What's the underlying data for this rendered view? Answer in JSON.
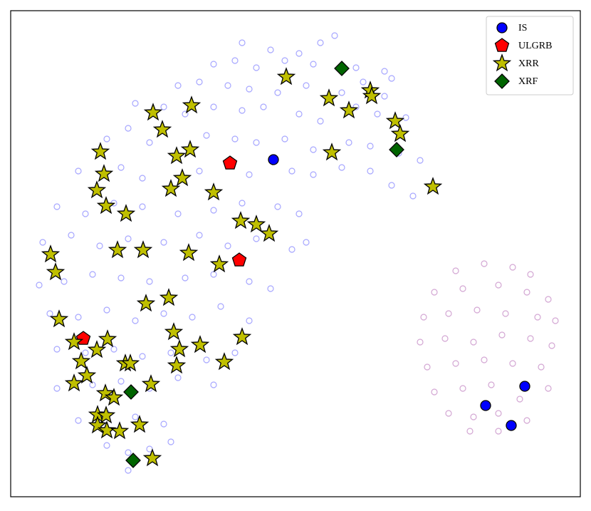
{
  "chart_data": {
    "type": "scatter",
    "xlim": [
      15,
      815
    ],
    "ylim": [
      697,
      15
    ],
    "legend": "upper right",
    "series": [
      {
        "color": "#0000ff",
        "marker": "circle",
        "filled": false,
        "x": [
          450,
          470,
          420,
          380,
          340,
          300,
          330,
          360,
          400,
          440,
          500,
          540,
          550,
          250,
          280,
          320,
          350,
          390,
          430,
          480,
          510,
          540,
          190,
          230,
          260,
          300,
          340,
          370,
          420,
          450,
          500,
          530,
          570,
          150,
          180,
          210,
          290,
          330,
          360,
          400,
          440,
          490,
          520,
          560,
          590,
          110,
          170,
          200,
          280,
          350,
          410,
          440,
          480,
          520,
          550,
          580,
          80,
          120,
          160,
          200,
          250,
          300,
          340,
          390,
          420,
          60,
          100,
          140,
          180,
          230,
          280,
          320,
          360,
          410,
          430,
          55,
          90,
          130,
          170,
          210,
          260,
          300,
          350,
          380,
          70,
          110,
          150,
          190,
          230,
          270,
          310,
          350,
          80,
          120,
          160,
          200,
          240,
          290,
          330,
          80,
          130,
          170,
          210,
          250,
          300,
          110,
          150,
          190,
          230,
          150,
          180,
          210,
          240,
          180
        ],
        "y": [
          60,
          50,
          75,
          70,
          60,
          90,
          85,
          95,
          85,
          90,
          95,
          100,
          110,
          120,
          115,
          120,
          125,
          130,
          120,
          130,
          115,
          135,
          145,
          150,
          160,
          150,
          155,
          150,
          160,
          170,
          150,
          160,
          165,
          195,
          180,
          200,
          190,
          195,
          200,
          195,
          210,
          200,
          205,
          215,
          225,
          240,
          235,
          250,
          240,
          245,
          240,
          245,
          235,
          240,
          260,
          275,
          290,
          300,
          285,
          290,
          300,
          295,
          285,
          290,
          300,
          340,
          330,
          345,
          335,
          340,
          330,
          345,
          335,
          350,
          340,
          400,
          395,
          385,
          390,
          395,
          390,
          385,
          395,
          405,
          440,
          445,
          435,
          450,
          440,
          445,
          430,
          450,
          490,
          495,
          490,
          500,
          495,
          505,
          495,
          545,
          540,
          535,
          545,
          530,
          540,
          590,
          580,
          585,
          595,
          625,
          635,
          630,
          620,
          660
        ]
      },
      {
        "color": "#800080",
        "marker": "circle",
        "filled": false,
        "x": [
          640,
          680,
          720,
          745,
          610,
          650,
          700,
          740,
          770,
          595,
          630,
          670,
          710,
          755,
          780,
          590,
          625,
          665,
          705,
          745,
          775,
          600,
          640,
          680,
          720,
          760,
          610,
          650,
          690,
          730,
          770,
          630,
          665,
          700,
          740,
          660,
          700
        ],
        "y": [
          380,
          370,
          375,
          385,
          410,
          405,
          400,
          410,
          420,
          445,
          440,
          435,
          440,
          445,
          450,
          480,
          475,
          480,
          470,
          475,
          485,
          515,
          510,
          505,
          510,
          515,
          550,
          545,
          540,
          560,
          545,
          580,
          585,
          580,
          590,
          605,
          605
        ]
      },
      {
        "name": "IS",
        "color": "#0000ff",
        "marker": "circle",
        "filled": true,
        "x": [
          384,
          682,
          737,
          718
        ],
        "y": [
          224,
          569,
          542,
          597
        ]
      },
      {
        "name": "ULGRB",
        "color": "#ff0000",
        "marker": "pentagon",
        "filled": true,
        "x": [
          323,
          336,
          117
        ],
        "y": [
          229,
          365,
          475
        ]
      },
      {
        "name": "XRR",
        "color": "#bfbf00",
        "marker": "star",
        "filled": true,
        "x": [
          402,
          462,
          490,
          520,
          522,
          555,
          562,
          466,
          608,
          215,
          269,
          228,
          141,
          248,
          267,
          146,
          136,
          256,
          240,
          300,
          149,
          177,
          338,
          360,
          378,
          165,
          201,
          265,
          308,
          71,
          78,
          237,
          205,
          83,
          244,
          340,
          104,
          136,
          151,
          252,
          281,
          114,
          248,
          315,
          176,
          183,
          122,
          104,
          212,
          148,
          160,
          137,
          149,
          137,
          150,
          168,
          196,
          214
        ],
        "y": [
          108,
          138,
          155,
          127,
          135,
          170,
          188,
          214,
          262,
          158,
          148,
          182,
          213,
          219,
          210,
          244,
          267,
          250,
          265,
          270,
          289,
          300,
          310,
          315,
          328,
          351,
          351,
          355,
          371,
          357,
          382,
          418,
          426,
          448,
          466,
          473,
          480,
          491,
          476,
          490,
          484,
          507,
          513,
          508,
          510,
          510,
          527,
          538,
          539,
          552,
          558,
          582,
          583,
          597,
          604,
          605,
          596,
          643
        ]
      },
      {
        "name": "XRF",
        "color": "#006400",
        "marker": "diamond",
        "filled": true,
        "x": [
          480,
          557,
          184,
          187
        ],
        "y": [
          96,
          210,
          550,
          646
        ]
      }
    ]
  }
}
